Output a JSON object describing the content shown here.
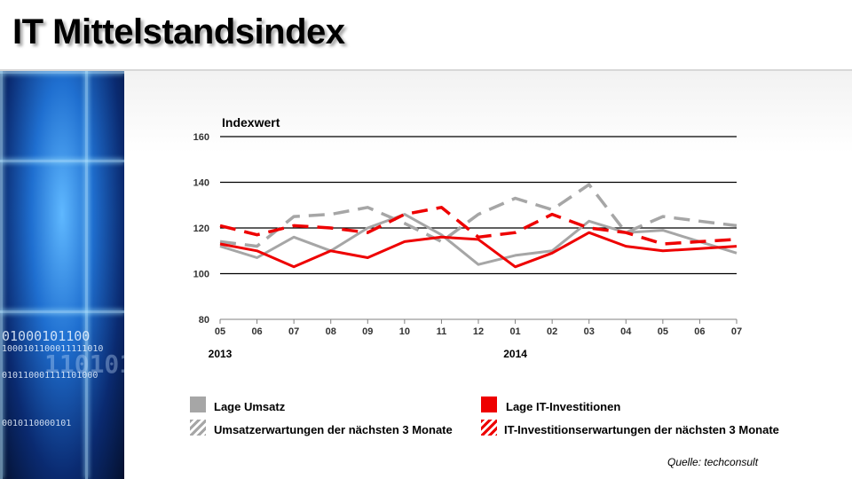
{
  "title": "IT Mittelstandsindex",
  "decoration": {
    "binary_lines": [
      "01000101100",
      "1000101100011111010",
      "110101",
      "010110001111101000",
      "0010110000101"
    ]
  },
  "source": "Quelle:  techconsult",
  "chart_data": {
    "type": "line",
    "ylabel": "Indexwert",
    "ylim": [
      80,
      160
    ],
    "yticks": [
      80,
      100,
      120,
      140,
      160
    ],
    "categories": [
      "05",
      "06",
      "07",
      "08",
      "09",
      "10",
      "11",
      "12",
      "01",
      "02",
      "03",
      "04",
      "05",
      "06",
      "07"
    ],
    "year_labels": [
      {
        "label": "2013",
        "index": 0
      },
      {
        "label": "2014",
        "index": 8
      }
    ],
    "grid": true,
    "series": [
      {
        "name": "Lage Umsatz",
        "color": "#a6a6a6",
        "dashed": false,
        "values": [
          112,
          107,
          116,
          110,
          120,
          126,
          117,
          104,
          108,
          110,
          123,
          118,
          119,
          114,
          109
        ]
      },
      {
        "name": "Umsatzerwartungen der nächsten 3 Monate",
        "color": "#a6a6a6",
        "dashed": true,
        "values": [
          114,
          112,
          125,
          126,
          129,
          122,
          114,
          126,
          133,
          128,
          139,
          118,
          125,
          123,
          121
        ]
      },
      {
        "name": "Lage IT-Investitionen",
        "color": "#ee0000",
        "dashed": false,
        "values": [
          113,
          110,
          103,
          110,
          107,
          114,
          116,
          115,
          103,
          109,
          118,
          112,
          110,
          111,
          112
        ]
      },
      {
        "name": "IT-Investitionserwartungen  der nächsten 3 Monate",
        "color": "#ee0000",
        "dashed": true,
        "values": [
          121,
          117,
          121,
          120,
          118,
          126,
          129,
          116,
          118,
          126,
          120,
          118,
          113,
          114,
          115
        ]
      }
    ]
  }
}
